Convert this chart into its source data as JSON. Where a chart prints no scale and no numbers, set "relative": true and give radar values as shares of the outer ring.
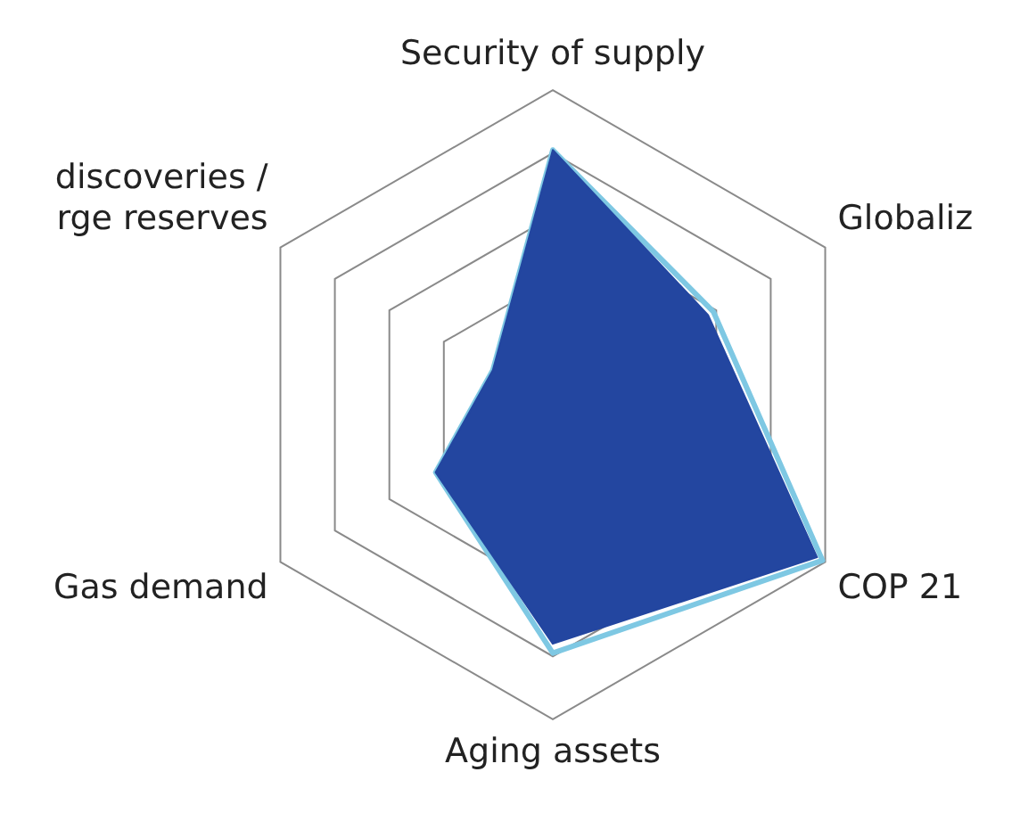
{
  "chart_data": {
    "type": "radar",
    "relative": true,
    "grid": true,
    "legend": false,
    "categories": [
      "Security of supply",
      "Globaliz",
      "COP 21",
      "Aging assets",
      "Gas demand",
      "discoveries /\nrge reserves"
    ],
    "series": [
      {
        "color": "#2346a0",
        "values": [
          0.81,
          0.57,
          0.97,
          0.76,
          0.43,
          0.22
        ]
      },
      {
        "color": "#7ec8e3",
        "values": [
          0.81,
          0.59,
          0.99,
          0.79,
          0.43,
          0.22
        ]
      }
    ]
  }
}
